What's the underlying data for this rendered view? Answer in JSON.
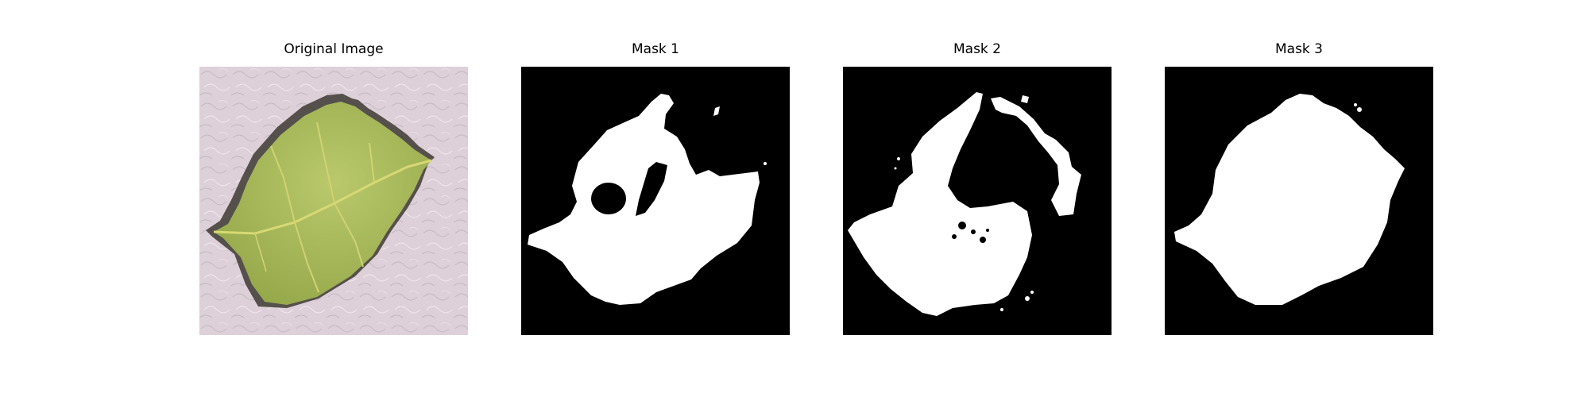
{
  "panels": [
    {
      "title": "Original Image",
      "kind": "photo"
    },
    {
      "title": "Mask 1",
      "kind": "mask"
    },
    {
      "title": "Mask 2",
      "kind": "mask"
    },
    {
      "title": "Mask 3",
      "kind": "mask"
    }
  ],
  "colors": {
    "mask_background": "#000000",
    "mask_foreground": "#ffffff",
    "photo_background": "#ddd0d8",
    "leaf": "#a8bc5c",
    "leaf_vein": "#d7d874",
    "leaf_shadow": "#3e3a34"
  }
}
